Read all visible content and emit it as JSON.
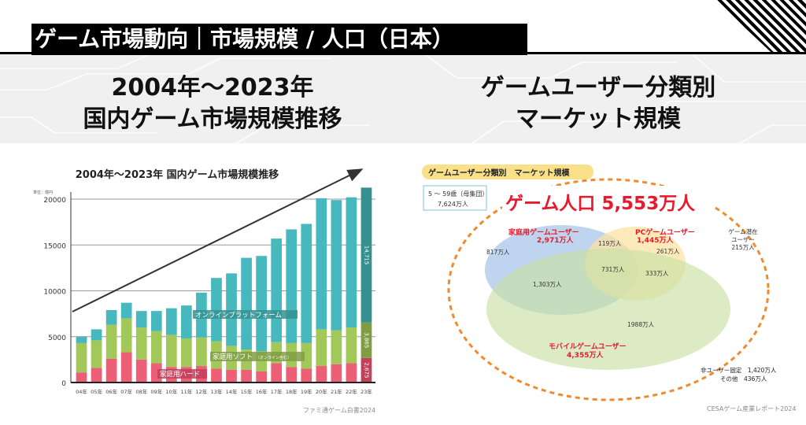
{
  "header": {
    "title": "ゲーム市場動向｜市場規模 / 人口（日本）"
  },
  "left_heading": {
    "line1": "2004年〜2023年",
    "line2": "国内ゲーム市場規模推移"
  },
  "right_heading": {
    "line1": "ゲームユーザー分類別",
    "line2": "マーケット規模"
  },
  "chart_data": {
    "type": "bar",
    "stacked": true,
    "title": "2004年～2023年 国内ゲーム市場規模推移",
    "unit_label": "単位：億円",
    "xlabel": "",
    "ylabel": "",
    "ylim": [
      0,
      21500
    ],
    "yticks": [
      0,
      5000,
      10000,
      15000,
      20000
    ],
    "ytick_labels": [
      "0",
      "5000",
      "10000",
      "15000",
      "20000"
    ],
    "grid": true,
    "categories": [
      "04年",
      "05年",
      "06年",
      "07年",
      "08年",
      "09年",
      "10年",
      "11年",
      "12年",
      "13年",
      "14年",
      "15年",
      "16年",
      "17年",
      "18年",
      "19年",
      "20年",
      "21年",
      "22年",
      "23年"
    ],
    "series": [
      {
        "name": "家庭用ハード",
        "color": "#ec5f76",
        "highlight_color": "#c2405a",
        "values": [
          1100,
          1600,
          2600,
          3300,
          2500,
          2100,
          1700,
          1700,
          1800,
          1500,
          1400,
          1400,
          1200,
          2100,
          1700,
          1500,
          1800,
          2000,
          2100,
          2675
        ]
      },
      {
        "name": "家庭用ソフト",
        "name_note": "（オンライン含む）",
        "color": "#a2c85a",
        "highlight_color": "#7f9e44",
        "values": [
          3200,
          3000,
          3700,
          3700,
          3500,
          3500,
          3500,
          3100,
          3100,
          3000,
          2600,
          2200,
          2200,
          2300,
          2600,
          2800,
          4000,
          3700,
          3900,
          3865
        ]
      },
      {
        "name": "オンラインプラットフォーム",
        "color": "#47b9be",
        "highlight_color": "#35908f",
        "values": [
          700,
          1200,
          1600,
          1700,
          1800,
          2200,
          2900,
          3600,
          4900,
          6900,
          7900,
          10000,
          10400,
          11300,
          12400,
          13000,
          14300,
          14200,
          14200,
          14715
        ]
      }
    ],
    "data_labels_last_bar": [
      "2,675",
      "3,865",
      "14,715"
    ],
    "trend_arrow": true
  },
  "chart_source": "ファミ通ゲーム白書2024",
  "venn": {
    "badge_title": "ゲームユーザー分類別　マーケット規模",
    "population_box": {
      "line1": "5 ～ 59歳（母集団）",
      "line2": "7,624万人"
    },
    "game_population": "ゲーム人口 5,553万人",
    "sets": [
      {
        "name": "家庭用ゲームユーザー",
        "total": "2,971万人",
        "color": "#a9c6e8"
      },
      {
        "name": "PCゲームユーザー",
        "total": "1,445万人",
        "color": "#fbe3a3"
      },
      {
        "name": "モバイルゲームユーザー",
        "total": "4,355万人",
        "color": "#c9e0a4"
      }
    ],
    "regions": {
      "home_only": "817万人",
      "home_pc": "119万人",
      "pc_only": "261万人",
      "all_three": "731万人",
      "pc_mobile": "333万人",
      "home_mobile": "1,303万人",
      "mobile_only": "1988万人"
    },
    "potential_users": {
      "line1": "ゲーム潜在",
      "line2": "ユーザー",
      "line3": "215万人"
    },
    "non_users": {
      "line1": "非ユーザー固定　1,420万人",
      "line2": "その他　436万人"
    },
    "accent_color": "#e8192c",
    "dash_color": "#f08a2c"
  },
  "venn_source": "CESAゲーム産業レポート2024"
}
